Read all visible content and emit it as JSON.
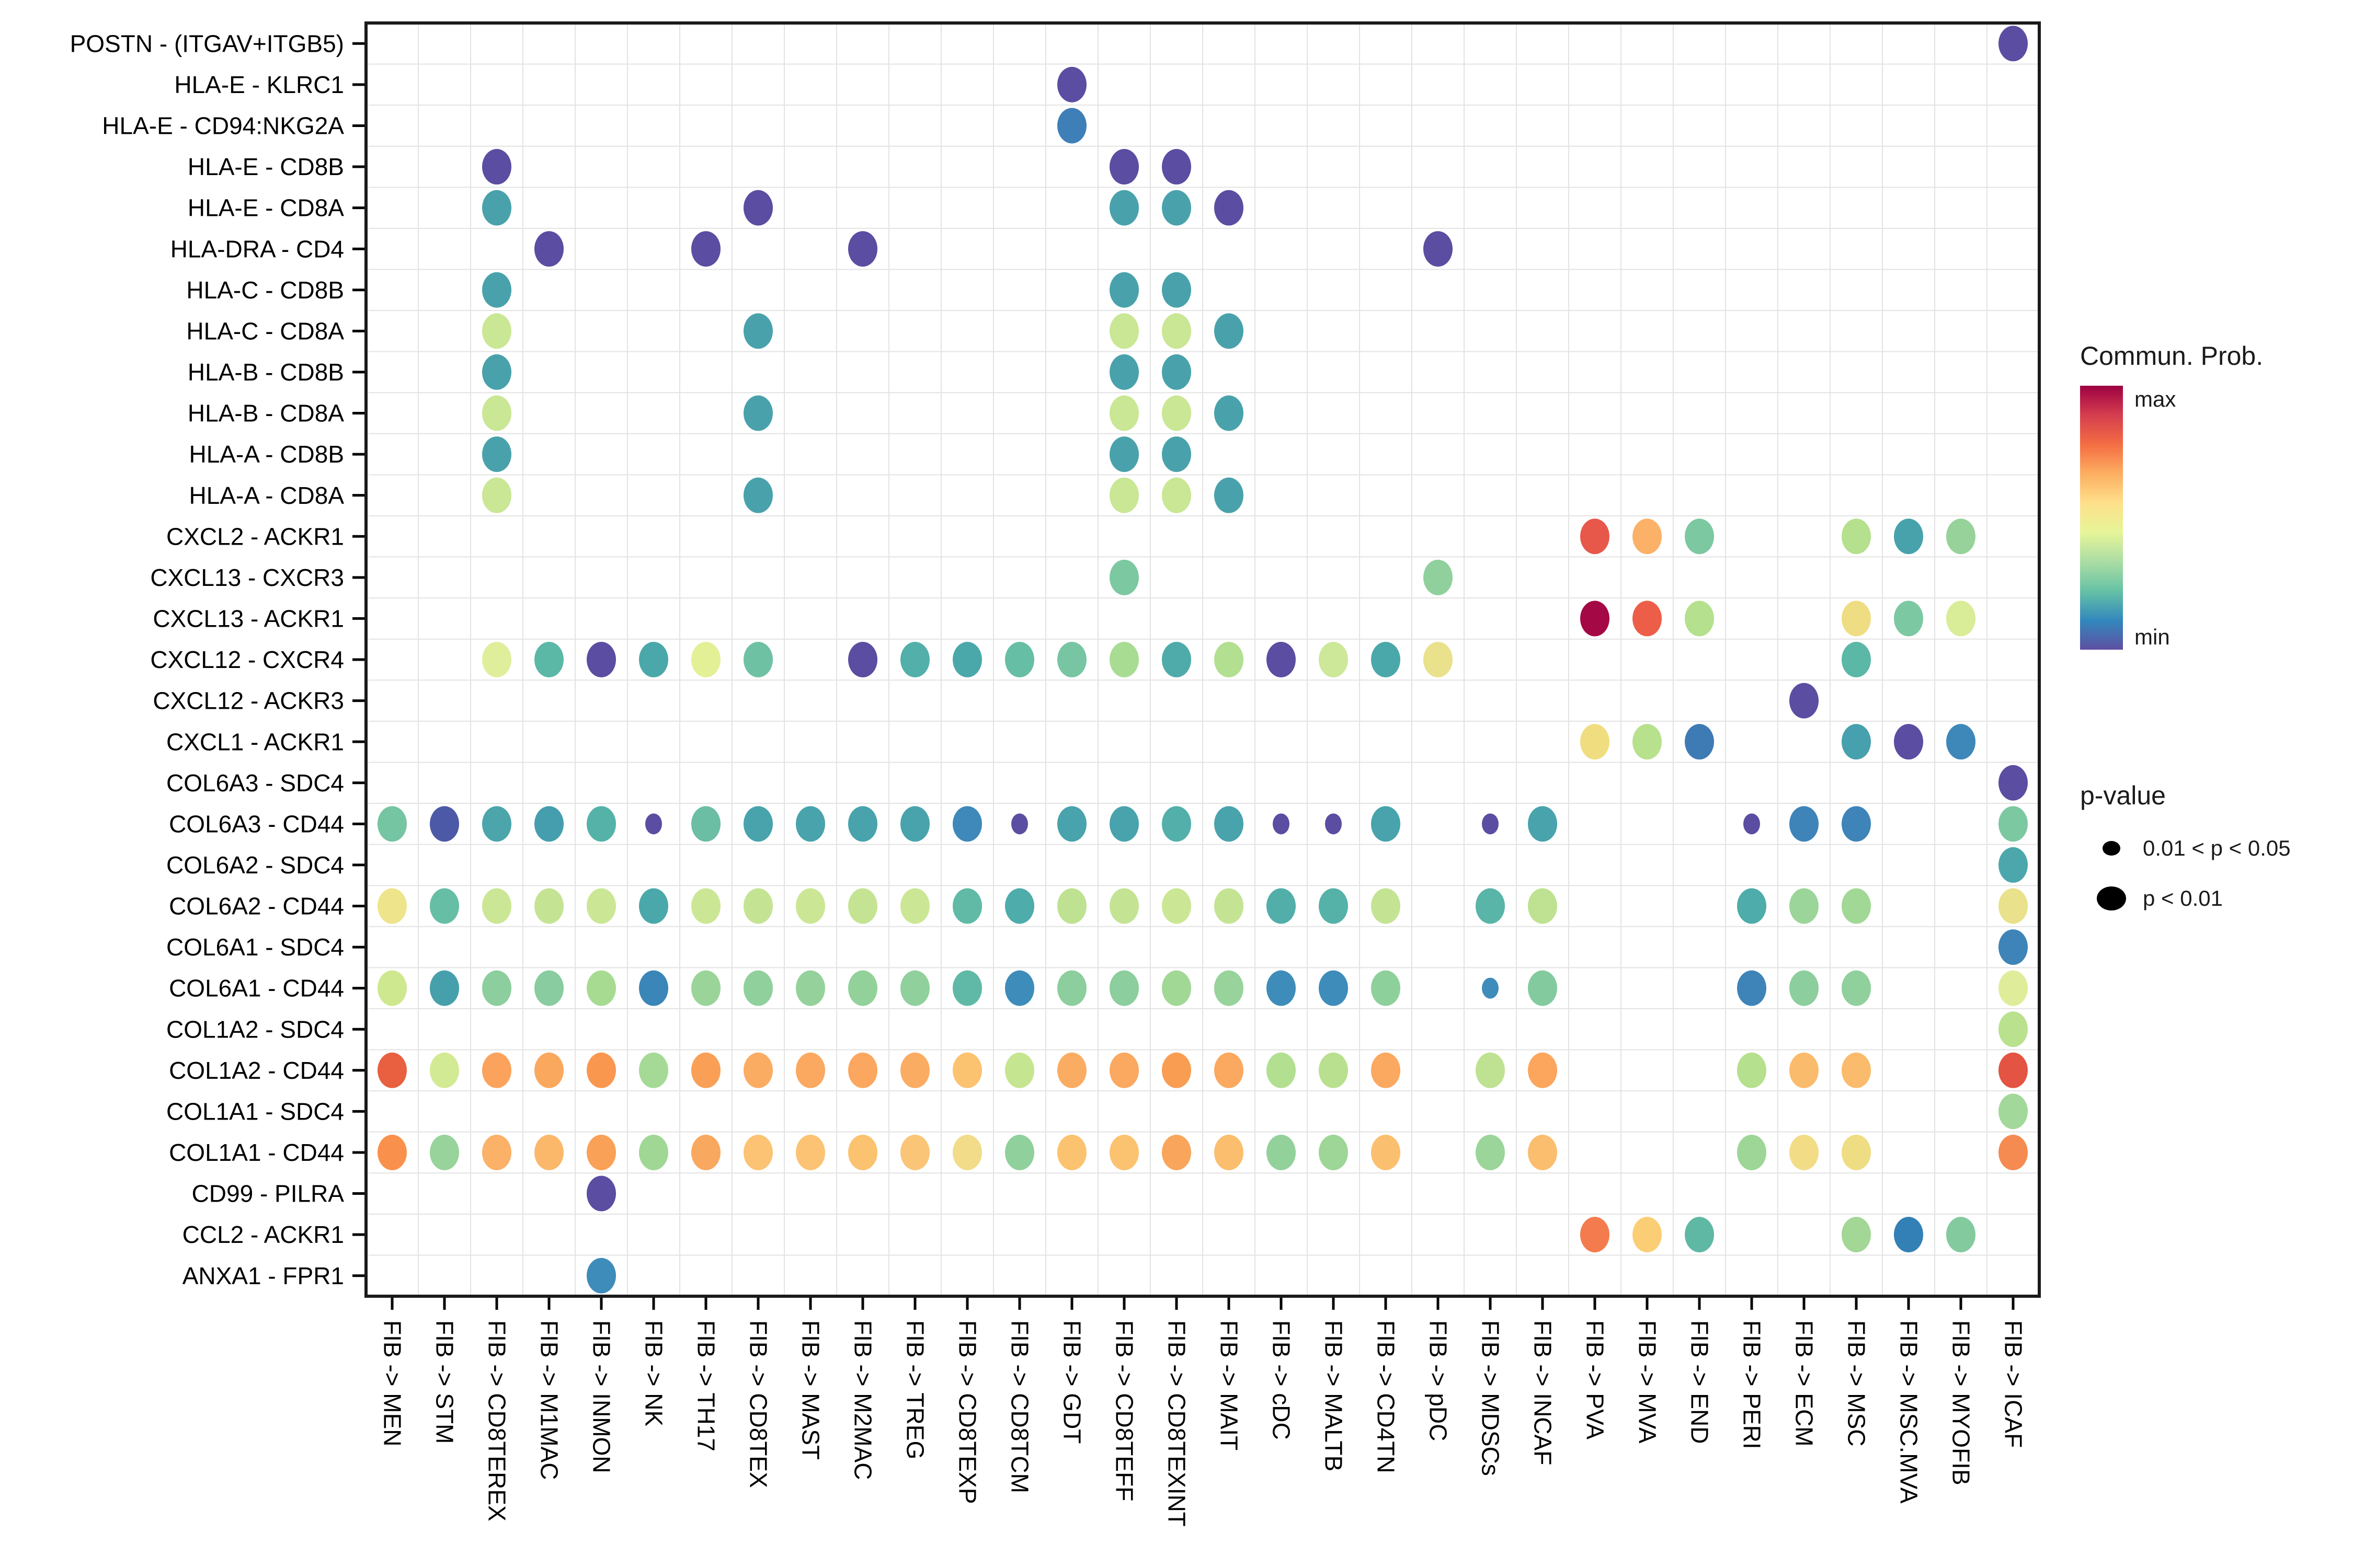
{
  "chart_data": {
    "type": "bubble",
    "title": "",
    "x_label_rotation_deg": 90,
    "grid": true,
    "x_categories": [
      "FIB -> MEN",
      "FIB -> STM",
      "FIB -> CD8TEREX",
      "FIB -> M1MAC",
      "FIB -> INMON",
      "FIB -> NK",
      "FIB -> TH17",
      "FIB -> CD8TEX",
      "FIB -> MAST",
      "FIB -> M2MAC",
      "FIB -> TREG",
      "FIB -> CD8TEXP",
      "FIB -> CD8TCM",
      "FIB -> GDT",
      "FIB -> CD8TEFF",
      "FIB -> CD8TEXINT",
      "FIB -> MAIT",
      "FIB -> cDC",
      "FIB -> MALTB",
      "FIB -> CD4TN",
      "FIB -> pDC",
      "FIB -> MDSCs",
      "FIB -> INCAF",
      "FIB -> PVA",
      "FIB -> MVA",
      "FIB -> END",
      "FIB -> PERI",
      "FIB -> ECM",
      "FIB -> MSC",
      "FIB -> MSC.MVA",
      "FIB -> MYOFIB",
      "FIB -> ICAF"
    ],
    "y_categories": [
      "POSTN - (ITGAV+ITGB5)",
      "HLA-E - KLRC1",
      "HLA-E - CD94:NKG2A",
      "HLA-E - CD8B",
      "HLA-E - CD8A",
      "HLA-DRA - CD4",
      "HLA-C - CD8B",
      "HLA-C - CD8A",
      "HLA-B - CD8B",
      "HLA-B - CD8A",
      "HLA-A - CD8B",
      "HLA-A - CD8A",
      "CXCL2 - ACKR1",
      "CXCL13 - CXCR3",
      "CXCL13 - ACKR1",
      "CXCL12 - CXCR4",
      "CXCL12 - ACKR3",
      "CXCL1 - ACKR1",
      "COL6A3 - SDC4",
      "COL6A3 - CD44",
      "COL6A2 - SDC4",
      "COL6A2 - CD44",
      "COL6A1 - SDC4",
      "COL6A1 - CD44",
      "COL1A2 - SDC4",
      "COL1A2 - CD44",
      "COL1A1 - SDC4",
      "COL1A1 - CD44",
      "CD99 - PILRA",
      "CCL2 - ACKR1",
      "ANXA1 - FPR1"
    ],
    "point_format": [
      "row_index_top_based",
      "col_index",
      "size_1_large_p_lt_0.01_0_small",
      "color"
    ],
    "points": [
      [
        0,
        31,
        1,
        "#5B4DA1"
      ],
      [
        1,
        13,
        1,
        "#5B4DA1"
      ],
      [
        2,
        13,
        1,
        "#3E7FB7"
      ],
      [
        3,
        2,
        1,
        "#5B4DA1"
      ],
      [
        3,
        14,
        1,
        "#5B4DA1"
      ],
      [
        3,
        15,
        1,
        "#5B4DA1"
      ],
      [
        4,
        2,
        1,
        "#49A2AB"
      ],
      [
        4,
        7,
        1,
        "#5B4DA1"
      ],
      [
        4,
        14,
        1,
        "#49A2AB"
      ],
      [
        4,
        15,
        1,
        "#49A2AB"
      ],
      [
        4,
        16,
        1,
        "#5B4DA1"
      ],
      [
        5,
        3,
        1,
        "#5B4DA1"
      ],
      [
        5,
        6,
        1,
        "#5B4DA1"
      ],
      [
        5,
        9,
        1,
        "#5B4DA1"
      ],
      [
        5,
        20,
        1,
        "#5B4DA1"
      ],
      [
        6,
        2,
        1,
        "#49A2AB"
      ],
      [
        6,
        14,
        1,
        "#49A2AB"
      ],
      [
        6,
        15,
        1,
        "#49A2AB"
      ],
      [
        7,
        2,
        1,
        "#C9E794"
      ],
      [
        7,
        7,
        1,
        "#49A2AB"
      ],
      [
        7,
        14,
        1,
        "#C9E794"
      ],
      [
        7,
        15,
        1,
        "#C9E794"
      ],
      [
        7,
        16,
        1,
        "#49A2AB"
      ],
      [
        8,
        2,
        1,
        "#49A2AB"
      ],
      [
        8,
        14,
        1,
        "#49A2AB"
      ],
      [
        8,
        15,
        1,
        "#49A2AB"
      ],
      [
        9,
        2,
        1,
        "#C9E794"
      ],
      [
        9,
        7,
        1,
        "#49A2AB"
      ],
      [
        9,
        14,
        1,
        "#C9E794"
      ],
      [
        9,
        15,
        1,
        "#C9E794"
      ],
      [
        9,
        16,
        1,
        "#49A2AB"
      ],
      [
        10,
        2,
        1,
        "#49A2AB"
      ],
      [
        10,
        14,
        1,
        "#49A2AB"
      ],
      [
        10,
        15,
        1,
        "#49A2AB"
      ],
      [
        11,
        2,
        1,
        "#C9E794"
      ],
      [
        11,
        7,
        1,
        "#49A2AB"
      ],
      [
        11,
        14,
        1,
        "#C9E794"
      ],
      [
        11,
        15,
        1,
        "#C9E794"
      ],
      [
        11,
        16,
        1,
        "#49A2AB"
      ],
      [
        12,
        23,
        1,
        "#E8584A"
      ],
      [
        12,
        24,
        1,
        "#FBB168"
      ],
      [
        12,
        25,
        1,
        "#7CC8A1"
      ],
      [
        12,
        28,
        1,
        "#B5E08D"
      ],
      [
        12,
        29,
        1,
        "#47A2AC"
      ],
      [
        12,
        30,
        1,
        "#96D29A"
      ],
      [
        13,
        14,
        1,
        "#7CC8A1"
      ],
      [
        13,
        20,
        1,
        "#8FD09C"
      ],
      [
        14,
        23,
        1,
        "#A40845"
      ],
      [
        14,
        24,
        1,
        "#ED5E48"
      ],
      [
        14,
        25,
        1,
        "#B5E08D"
      ],
      [
        14,
        28,
        1,
        "#EFDD83"
      ],
      [
        14,
        29,
        1,
        "#7CC8A2"
      ],
      [
        14,
        30,
        1,
        "#D9EC97"
      ],
      [
        15,
        2,
        1,
        "#DFEE9B"
      ],
      [
        15,
        3,
        1,
        "#5BB7A6"
      ],
      [
        15,
        4,
        1,
        "#5B4DA1"
      ],
      [
        15,
        5,
        1,
        "#4BA8AA"
      ],
      [
        15,
        6,
        1,
        "#E4F095"
      ],
      [
        15,
        7,
        1,
        "#6FC1A4"
      ],
      [
        15,
        9,
        1,
        "#5B4DA1"
      ],
      [
        15,
        10,
        1,
        "#52AFA9"
      ],
      [
        15,
        11,
        1,
        "#4BA8AA"
      ],
      [
        15,
        12,
        1,
        "#66BEA5"
      ],
      [
        15,
        13,
        1,
        "#77C5A2"
      ],
      [
        15,
        14,
        1,
        "#A9DC93"
      ],
      [
        15,
        15,
        1,
        "#4FABAA"
      ],
      [
        15,
        16,
        1,
        "#B2DF90"
      ],
      [
        15,
        17,
        1,
        "#5B4DA1"
      ],
      [
        15,
        18,
        1,
        "#CDE899"
      ],
      [
        15,
        19,
        1,
        "#4BA8AA"
      ],
      [
        15,
        20,
        1,
        "#E9E18B"
      ],
      [
        15,
        28,
        1,
        "#5BB7A6"
      ],
      [
        16,
        27,
        1,
        "#5B4DA1"
      ],
      [
        17,
        23,
        1,
        "#EFDD80"
      ],
      [
        17,
        24,
        1,
        "#B8E18D"
      ],
      [
        17,
        25,
        1,
        "#3E7BB5"
      ],
      [
        17,
        28,
        1,
        "#46A0AD"
      ],
      [
        17,
        29,
        1,
        "#5B4DA1"
      ],
      [
        17,
        30,
        1,
        "#3E88B9"
      ],
      [
        18,
        31,
        1,
        "#5B4DA1"
      ],
      [
        19,
        0,
        1,
        "#75C4A2"
      ],
      [
        19,
        1,
        1,
        "#4C59A7"
      ],
      [
        19,
        2,
        1,
        "#4BA5AB"
      ],
      [
        19,
        3,
        1,
        "#459EAD"
      ],
      [
        19,
        4,
        1,
        "#55B2A8"
      ],
      [
        19,
        5,
        0,
        "#5B4DA1"
      ],
      [
        19,
        6,
        1,
        "#6BBEA4"
      ],
      [
        19,
        7,
        1,
        "#48A3AC"
      ],
      [
        19,
        8,
        1,
        "#48A3AC"
      ],
      [
        19,
        9,
        1,
        "#48A3AC"
      ],
      [
        19,
        10,
        1,
        "#48A3AC"
      ],
      [
        19,
        11,
        1,
        "#3E89B9"
      ],
      [
        19,
        12,
        0,
        "#5B4DA1"
      ],
      [
        19,
        13,
        1,
        "#48A3AC"
      ],
      [
        19,
        14,
        1,
        "#48A3AC"
      ],
      [
        19,
        15,
        1,
        "#52AFA9"
      ],
      [
        19,
        16,
        1,
        "#48A3AC"
      ],
      [
        19,
        17,
        0,
        "#5B4DA1"
      ],
      [
        19,
        18,
        0,
        "#5B4DA1"
      ],
      [
        19,
        19,
        1,
        "#48A3AC"
      ],
      [
        19,
        21,
        0,
        "#5B4DA1"
      ],
      [
        19,
        22,
        1,
        "#48A3AC"
      ],
      [
        19,
        26,
        0,
        "#5B4DA1"
      ],
      [
        19,
        27,
        1,
        "#3E84B8"
      ],
      [
        19,
        28,
        1,
        "#3E84B8"
      ],
      [
        19,
        31,
        1,
        "#7CC8A1"
      ],
      [
        20,
        31,
        1,
        "#4BA7AB"
      ],
      [
        21,
        0,
        1,
        "#EDE48C"
      ],
      [
        21,
        1,
        1,
        "#66BEA5"
      ],
      [
        21,
        2,
        1,
        "#CBE795"
      ],
      [
        21,
        3,
        1,
        "#C4E494"
      ],
      [
        21,
        4,
        1,
        "#CBE795"
      ],
      [
        21,
        5,
        1,
        "#4BA8AA"
      ],
      [
        21,
        6,
        1,
        "#CBE795"
      ],
      [
        21,
        7,
        1,
        "#C4E494"
      ],
      [
        21,
        8,
        1,
        "#CBE795"
      ],
      [
        21,
        9,
        1,
        "#C4E494"
      ],
      [
        21,
        10,
        1,
        "#CBE795"
      ],
      [
        21,
        11,
        1,
        "#60BAA6"
      ],
      [
        21,
        12,
        1,
        "#4EACAA"
      ],
      [
        21,
        13,
        1,
        "#BEE291"
      ],
      [
        21,
        14,
        1,
        "#C4E494"
      ],
      [
        21,
        15,
        1,
        "#CBE795"
      ],
      [
        21,
        16,
        1,
        "#C4E494"
      ],
      [
        21,
        17,
        1,
        "#51AEA9"
      ],
      [
        21,
        18,
        1,
        "#55B2A8"
      ],
      [
        21,
        19,
        1,
        "#C4E494"
      ],
      [
        21,
        21,
        1,
        "#58B5A7"
      ],
      [
        21,
        22,
        1,
        "#BEE291"
      ],
      [
        21,
        26,
        1,
        "#4EACAA"
      ],
      [
        21,
        27,
        1,
        "#9BD599"
      ],
      [
        21,
        28,
        1,
        "#A2D896"
      ],
      [
        21,
        31,
        1,
        "#E9E18B"
      ],
      [
        22,
        31,
        1,
        "#3E84B8"
      ],
      [
        23,
        0,
        1,
        "#CDE88F"
      ],
      [
        23,
        1,
        1,
        "#46A0AC"
      ],
      [
        23,
        2,
        1,
        "#8CCE9D"
      ],
      [
        23,
        3,
        1,
        "#88CC9F"
      ],
      [
        23,
        4,
        1,
        "#A8DB92"
      ],
      [
        23,
        5,
        1,
        "#3A86B8"
      ],
      [
        23,
        6,
        1,
        "#9AD499"
      ],
      [
        23,
        7,
        1,
        "#90D09C"
      ],
      [
        23,
        8,
        1,
        "#95D29B"
      ],
      [
        23,
        9,
        1,
        "#93D19B"
      ],
      [
        23,
        10,
        1,
        "#90D09D"
      ],
      [
        23,
        11,
        1,
        "#60B9A6"
      ],
      [
        23,
        12,
        1,
        "#3E8CBA"
      ],
      [
        23,
        13,
        1,
        "#8CCE9D"
      ],
      [
        23,
        14,
        1,
        "#8CCE9D"
      ],
      [
        23,
        15,
        1,
        "#A2D896"
      ],
      [
        23,
        16,
        1,
        "#97D39A"
      ],
      [
        23,
        17,
        1,
        "#3E8CBA"
      ],
      [
        23,
        18,
        1,
        "#3E8CBA"
      ],
      [
        23,
        19,
        1,
        "#8ED09C"
      ],
      [
        23,
        21,
        0,
        "#3E8CBA"
      ],
      [
        23,
        22,
        1,
        "#83CA9F"
      ],
      [
        23,
        26,
        1,
        "#3E84B8"
      ],
      [
        23,
        27,
        1,
        "#8CCE9D"
      ],
      [
        23,
        28,
        1,
        "#90D09C"
      ],
      [
        23,
        31,
        1,
        "#DFED9B"
      ],
      [
        24,
        31,
        1,
        "#B9E18E"
      ],
      [
        25,
        0,
        1,
        "#E8603F"
      ],
      [
        25,
        1,
        1,
        "#D3EA94"
      ],
      [
        25,
        2,
        1,
        "#FBA35C"
      ],
      [
        25,
        3,
        1,
        "#FBA85F"
      ],
      [
        25,
        4,
        1,
        "#F9974F"
      ],
      [
        25,
        5,
        1,
        "#A5DA96"
      ],
      [
        25,
        6,
        1,
        "#F9A056"
      ],
      [
        25,
        7,
        1,
        "#FBAC63"
      ],
      [
        25,
        8,
        1,
        "#FBA860"
      ],
      [
        25,
        9,
        1,
        "#FBA760"
      ],
      [
        25,
        10,
        1,
        "#FBAC63"
      ],
      [
        25,
        11,
        1,
        "#FBC26F"
      ],
      [
        25,
        12,
        1,
        "#C6E591"
      ],
      [
        25,
        13,
        1,
        "#FBAC63"
      ],
      [
        25,
        14,
        1,
        "#FBA860"
      ],
      [
        25,
        15,
        1,
        "#F99D53"
      ],
      [
        25,
        16,
        1,
        "#FBA860"
      ],
      [
        25,
        17,
        1,
        "#B2DF90"
      ],
      [
        25,
        18,
        1,
        "#B8E08E"
      ],
      [
        25,
        19,
        1,
        "#FBA860"
      ],
      [
        25,
        21,
        1,
        "#BEE291"
      ],
      [
        25,
        22,
        1,
        "#FBA55D"
      ],
      [
        25,
        26,
        1,
        "#B5E08D"
      ],
      [
        25,
        27,
        1,
        "#FBBB6C"
      ],
      [
        25,
        28,
        1,
        "#FBBB6C"
      ],
      [
        25,
        31,
        1,
        "#E35442"
      ],
      [
        26,
        31,
        1,
        "#A2D899"
      ],
      [
        27,
        0,
        1,
        "#F9914D"
      ],
      [
        27,
        1,
        1,
        "#97D39A"
      ],
      [
        27,
        2,
        1,
        "#FBB167"
      ],
      [
        27,
        3,
        1,
        "#FBB86B"
      ],
      [
        27,
        4,
        1,
        "#F9A156"
      ],
      [
        27,
        5,
        1,
        "#A0D795"
      ],
      [
        27,
        6,
        1,
        "#F9A860"
      ],
      [
        27,
        7,
        1,
        "#FBC373"
      ],
      [
        27,
        8,
        1,
        "#FBC373"
      ],
      [
        27,
        9,
        1,
        "#FBC26F"
      ],
      [
        27,
        10,
        1,
        "#FBC577"
      ],
      [
        27,
        11,
        1,
        "#F2DC8A"
      ],
      [
        27,
        12,
        1,
        "#90D09C"
      ],
      [
        27,
        13,
        1,
        "#FBC26F"
      ],
      [
        27,
        14,
        1,
        "#FBC26F"
      ],
      [
        27,
        15,
        1,
        "#F9A65C"
      ],
      [
        27,
        16,
        1,
        "#FBBE6E"
      ],
      [
        27,
        17,
        1,
        "#93D19B"
      ],
      [
        27,
        18,
        1,
        "#9DD697"
      ],
      [
        27,
        19,
        1,
        "#FBC06F"
      ],
      [
        27,
        21,
        1,
        "#9BD599"
      ],
      [
        27,
        22,
        1,
        "#FBBE6E"
      ],
      [
        27,
        26,
        1,
        "#9DD697"
      ],
      [
        27,
        27,
        1,
        "#F2DC86"
      ],
      [
        27,
        28,
        1,
        "#EFDD83"
      ],
      [
        27,
        31,
        1,
        "#F58B51"
      ],
      [
        28,
        4,
        1,
        "#5B4DA1"
      ],
      [
        29,
        23,
        1,
        "#F47B4D"
      ],
      [
        29,
        24,
        1,
        "#FBCE75"
      ],
      [
        29,
        25,
        1,
        "#5FB8A4"
      ],
      [
        29,
        28,
        1,
        "#A2D795"
      ],
      [
        29,
        29,
        1,
        "#3380B6"
      ],
      [
        29,
        30,
        1,
        "#83CA9F"
      ],
      [
        30,
        4,
        1,
        "#3E8CBA"
      ]
    ],
    "legend": {
      "color_title": "Commun. Prob.",
      "color_max_label": "max",
      "color_min_label": "min",
      "gradient_top_to_bottom": [
        "#9E0142",
        "#D53E4F",
        "#F46D43",
        "#FDAE61",
        "#FEE08B",
        "#E6F598",
        "#ABDDA4",
        "#66C2A5",
        "#3288BD",
        "#5E4FA2"
      ],
      "size_title": "p-value",
      "size_items": [
        {
          "label": "0.01 < p < 0.05",
          "size": "small"
        },
        {
          "label": "p < 0.01",
          "size": "large"
        }
      ]
    },
    "colors": {
      "frame": "#1A1A1A",
      "gridline": "#E3E3E3",
      "label_text": "#000000"
    }
  }
}
